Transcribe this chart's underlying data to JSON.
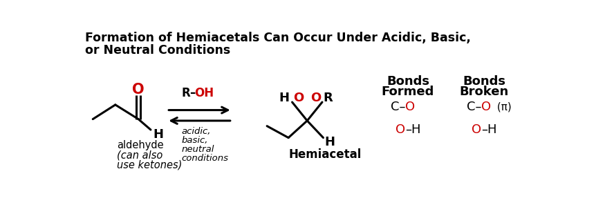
{
  "title_line1": "Formation of Hemiacetals Can Occur Under Acidic, Basic,",
  "title_line2": "or Neutral Conditions",
  "title_fontsize": 12.5,
  "bg_color": "#ffffff",
  "black": "#000000",
  "red": "#cc0000",
  "aldehyde_label_line1": "aldehyde",
  "aldehyde_label_line2": "(can also",
  "aldehyde_label_line3": "use ketones)",
  "hemiacetal_label": "Hemiacetal",
  "bonds_formed_header1": "Bonds",
  "bonds_formed_header2": "Formed",
  "bonds_broken_header1": "Bonds",
  "bonds_broken_header2": "Broken"
}
